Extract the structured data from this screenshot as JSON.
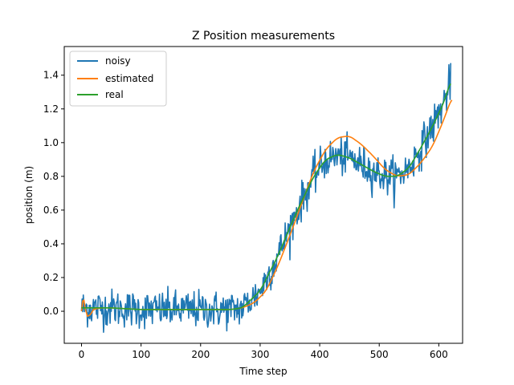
{
  "chart_data": {
    "type": "line",
    "title": "Z Position measurements",
    "xlabel": "Time step",
    "ylabel": "position (m)",
    "xlim": [
      -29,
      640
    ],
    "ylim": [
      -0.19,
      1.57
    ],
    "xticks": [
      0,
      100,
      200,
      300,
      400,
      500,
      600
    ],
    "yticks": [
      0.0,
      0.2,
      0.4,
      0.6,
      0.8,
      1.0,
      1.2,
      1.4
    ],
    "xtick_labels": [
      "0",
      "100",
      "200",
      "300",
      "400",
      "500",
      "600"
    ],
    "ytick_labels": [
      "0.0",
      "0.2",
      "0.4",
      "0.6",
      "0.8",
      "1.0",
      "1.2",
      "1.4"
    ],
    "grid": false,
    "legend_position": "top-left",
    "series": [
      {
        "name": "noisy",
        "color": "#1f77b4",
        "noise": 0.055,
        "x": [
          0,
          50,
          100,
          150,
          200,
          250,
          270,
          300,
          330,
          360,
          390,
          410,
          430,
          450,
          470,
          490,
          510,
          530,
          550,
          570,
          590,
          610,
          620
        ],
        "y": [
          0.02,
          0.02,
          0.01,
          0.01,
          0.01,
          0.01,
          0.02,
          0.12,
          0.33,
          0.58,
          0.8,
          0.9,
          0.92,
          0.91,
          0.87,
          0.83,
          0.8,
          0.8,
          0.85,
          0.97,
          1.1,
          1.25,
          1.37
        ]
      },
      {
        "name": "estimated",
        "color": "#ff7f0e",
        "x": [
          0,
          3,
          6,
          10,
          15,
          20,
          30,
          50,
          100,
          150,
          200,
          250,
          270,
          290,
          310,
          330,
          350,
          370,
          390,
          410,
          430,
          450,
          470,
          490,
          510,
          530,
          550,
          570,
          590,
          610,
          622
        ],
        "y": [
          0.0,
          0.09,
          0.02,
          -0.03,
          -0.02,
          0.01,
          0.02,
          0.02,
          0.01,
          0.01,
          0.01,
          0.01,
          0.02,
          0.05,
          0.12,
          0.27,
          0.45,
          0.64,
          0.83,
          0.96,
          1.03,
          1.04,
          0.99,
          0.92,
          0.84,
          0.8,
          0.81,
          0.88,
          0.98,
          1.15,
          1.27
        ]
      },
      {
        "name": "real",
        "color": "#2ca02c",
        "x": [
          0,
          50,
          100,
          150,
          200,
          250,
          270,
          300,
          330,
          360,
          390,
          410,
          430,
          450,
          470,
          490,
          510,
          530,
          550,
          570,
          590,
          610,
          620
        ],
        "y": [
          0.02,
          0.02,
          0.01,
          0.01,
          0.01,
          0.01,
          0.02,
          0.12,
          0.33,
          0.58,
          0.8,
          0.9,
          0.93,
          0.91,
          0.87,
          0.83,
          0.8,
          0.8,
          0.85,
          0.97,
          1.1,
          1.25,
          1.37
        ]
      }
    ]
  }
}
